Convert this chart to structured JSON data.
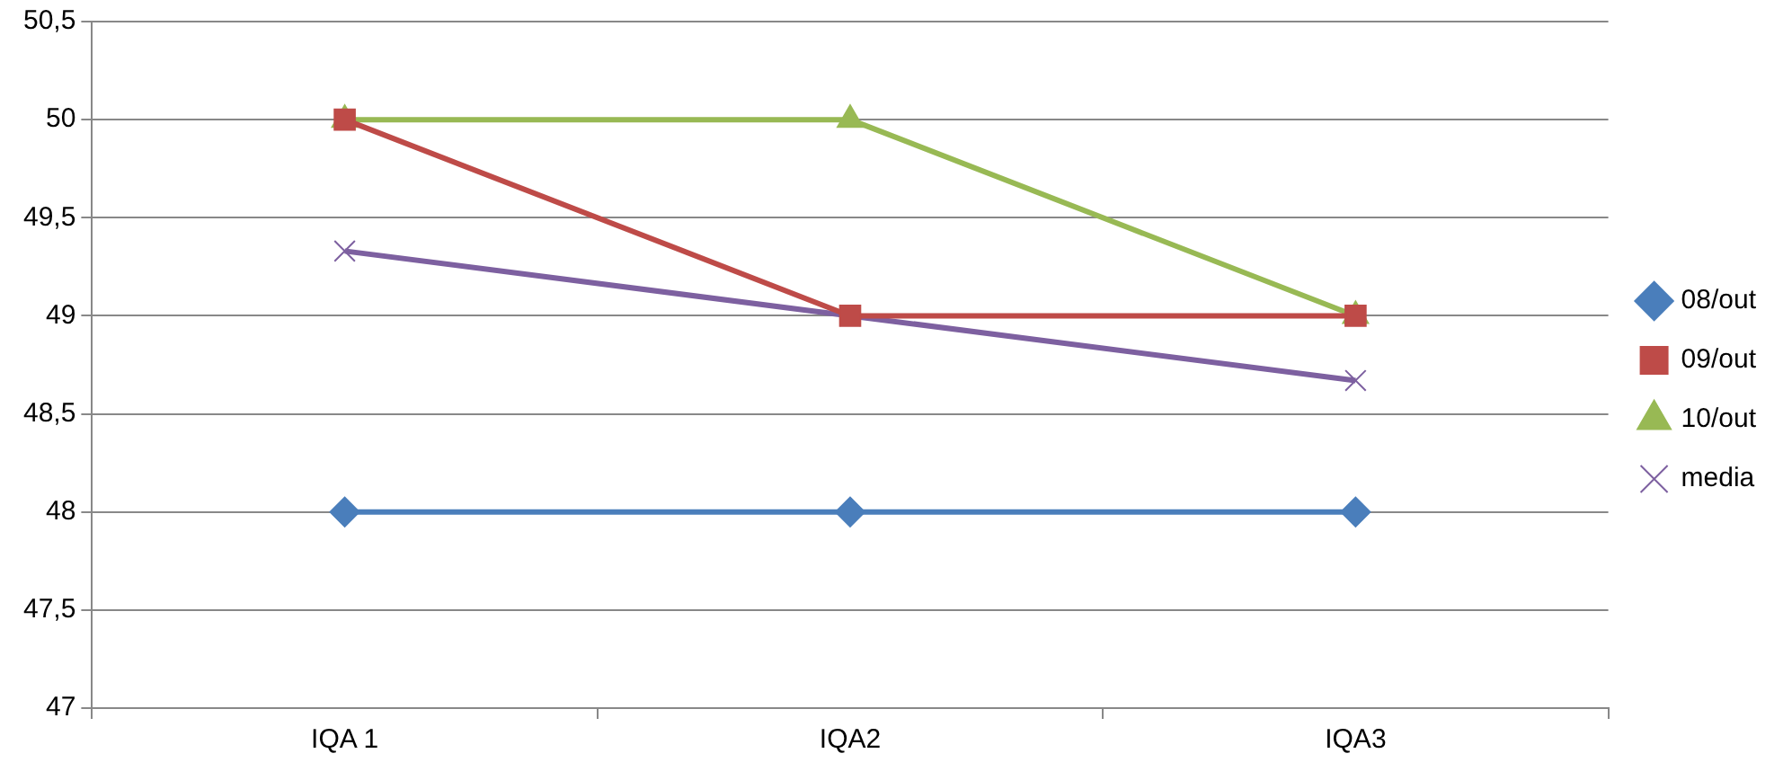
{
  "chart_data": {
    "type": "line",
    "categories": [
      "IQA 1",
      "IQA2",
      "IQA3"
    ],
    "series": [
      {
        "name": "08/out",
        "color": "#4a7ebb",
        "values": [
          48,
          48,
          48
        ],
        "marker": "diamond"
      },
      {
        "name": "09/out",
        "color": "#be4b48",
        "values": [
          50,
          49,
          49
        ],
        "marker": "square"
      },
      {
        "name": "10/out",
        "color": "#98b954",
        "values": [
          50,
          50,
          49
        ],
        "marker": "triangle"
      },
      {
        "name": "media",
        "color": "#7d60a0",
        "values": [
          49.33,
          49,
          48.67
        ],
        "marker": "cross"
      }
    ],
    "ylim": [
      47,
      50.5
    ],
    "yticks": [
      47,
      {
        "value": 47.5,
        "label": "47,5"
      },
      48,
      {
        "value": 48.5,
        "label": "48,5"
      },
      49,
      {
        "value": 49.5,
        "label": "49,5"
      },
      50,
      {
        "value": 50.5,
        "label": "50,5"
      }
    ],
    "grid": "y",
    "legend": "right",
    "line_style": "solid"
  }
}
